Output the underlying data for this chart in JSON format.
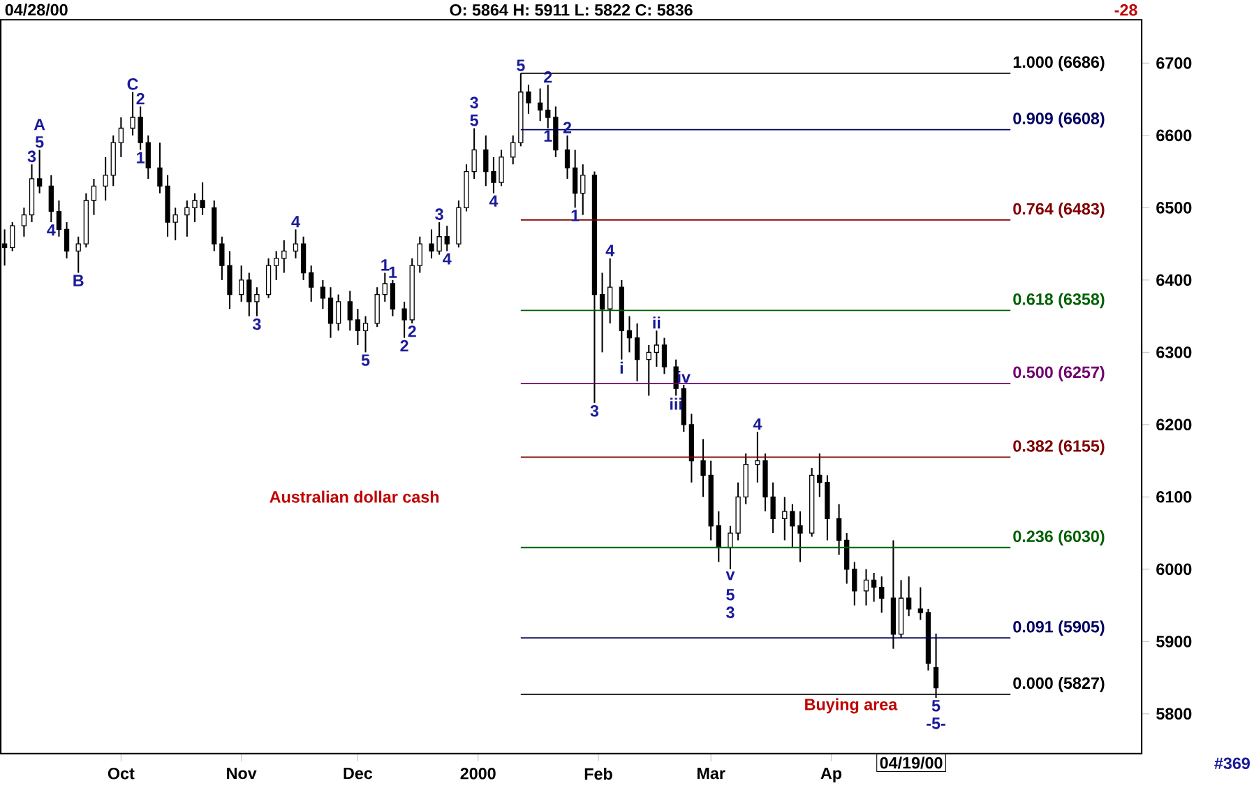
{
  "chart_data": {
    "type": "candlestick",
    "title": "04/28/00",
    "subtitle": "O: 5864   H: 5911   L: 5822   C: 5836",
    "x": [
      "1999-09-01",
      "1999-09-03",
      "1999-09-06",
      "1999-09-08",
      "1999-09-10",
      "1999-09-13",
      "1999-09-15",
      "1999-09-17",
      "1999-09-20",
      "1999-09-22",
      "1999-09-24",
      "1999-09-27",
      "1999-09-29",
      "1999-10-01",
      "1999-10-04",
      "1999-10-06",
      "1999-10-08",
      "1999-10-11",
      "1999-10-13",
      "1999-10-15",
      "1999-10-18",
      "1999-10-20",
      "1999-10-22",
      "1999-10-25",
      "1999-10-27",
      "1999-10-29",
      "1999-11-01",
      "1999-11-03",
      "1999-11-05",
      "1999-11-08",
      "1999-11-10",
      "1999-11-12",
      "1999-11-15",
      "1999-11-17",
      "1999-11-19",
      "1999-11-22",
      "1999-11-24",
      "1999-11-26",
      "1999-11-29",
      "1999-12-01",
      "1999-12-03",
      "1999-12-06",
      "1999-12-08",
      "1999-12-10",
      "1999-12-13",
      "1999-12-15",
      "1999-12-17",
      "1999-12-20",
      "1999-12-22",
      "1999-12-24",
      "1999-12-27",
      "1999-12-29",
      "1999-12-31",
      "2000-01-03",
      "2000-01-05",
      "2000-01-07",
      "2000-01-10",
      "2000-01-12",
      "2000-01-14",
      "2000-01-17",
      "2000-01-19",
      "2000-01-21",
      "2000-01-24",
      "2000-01-26",
      "2000-01-28",
      "2000-01-31",
      "2000-02-02",
      "2000-02-04",
      "2000-02-07",
      "2000-02-09",
      "2000-02-11",
      "2000-02-14",
      "2000-02-16",
      "2000-02-18",
      "2000-02-21",
      "2000-02-23",
      "2000-02-25",
      "2000-02-28",
      "2000-03-01",
      "2000-03-03",
      "2000-03-06",
      "2000-03-08",
      "2000-03-10",
      "2000-03-13",
      "2000-03-15",
      "2000-03-17",
      "2000-03-20",
      "2000-03-22",
      "2000-03-24",
      "2000-03-27",
      "2000-03-29",
      "2000-03-31",
      "2000-04-03",
      "2000-04-05",
      "2000-04-07",
      "2000-04-10",
      "2000-04-12",
      "2000-04-14",
      "2000-04-17",
      "2000-04-19",
      "2000-04-21",
      "2000-04-24",
      "2000-04-26",
      "2000-04-28"
    ],
    "ohlc": [
      [
        6450,
        6470,
        6420,
        6445
      ],
      [
        6445,
        6480,
        6440,
        6475
      ],
      [
        6475,
        6500,
        6460,
        6490
      ],
      [
        6490,
        6560,
        6480,
        6540
      ],
      [
        6540,
        6580,
        6520,
        6530
      ],
      [
        6530,
        6545,
        6480,
        6495
      ],
      [
        6495,
        6510,
        6460,
        6470
      ],
      [
        6470,
        6480,
        6430,
        6440
      ],
      [
        6440,
        6460,
        6410,
        6450
      ],
      [
        6450,
        6520,
        6445,
        6510
      ],
      [
        6510,
        6540,
        6490,
        6530
      ],
      [
        6530,
        6570,
        6510,
        6545
      ],
      [
        6545,
        6600,
        6530,
        6590
      ],
      [
        6590,
        6625,
        6570,
        6610
      ],
      [
        6610,
        6660,
        6600,
        6625
      ],
      [
        6625,
        6640,
        6580,
        6590
      ],
      [
        6590,
        6600,
        6540,
        6555
      ],
      [
        6555,
        6590,
        6520,
        6530
      ],
      [
        6530,
        6545,
        6460,
        6480
      ],
      [
        6480,
        6500,
        6455,
        6490
      ],
      [
        6490,
        6510,
        6460,
        6500
      ],
      [
        6500,
        6520,
        6480,
        6510
      ],
      [
        6510,
        6535,
        6490,
        6500
      ],
      [
        6500,
        6510,
        6440,
        6450
      ],
      [
        6450,
        6460,
        6400,
        6420
      ],
      [
        6420,
        6440,
        6360,
        6380
      ],
      [
        6380,
        6420,
        6370,
        6400
      ],
      [
        6400,
        6410,
        6350,
        6370
      ],
      [
        6370,
        6390,
        6350,
        6380
      ],
      [
        6380,
        6430,
        6375,
        6420
      ],
      [
        6420,
        6440,
        6400,
        6430
      ],
      [
        6430,
        6455,
        6410,
        6440
      ],
      [
        6440,
        6470,
        6430,
        6450
      ],
      [
        6450,
        6460,
        6400,
        6410
      ],
      [
        6410,
        6420,
        6370,
        6390
      ],
      [
        6390,
        6400,
        6360,
        6375
      ],
      [
        6375,
        6390,
        6320,
        6340
      ],
      [
        6340,
        6380,
        6330,
        6370
      ],
      [
        6370,
        6385,
        6330,
        6345
      ],
      [
        6345,
        6360,
        6310,
        6330
      ],
      [
        6330,
        6350,
        6300,
        6340
      ],
      [
        6340,
        6390,
        6335,
        6380
      ],
      [
        6380,
        6410,
        6370,
        6395
      ],
      [
        6395,
        6400,
        6350,
        6360
      ],
      [
        6360,
        6370,
        6320,
        6345
      ],
      [
        6345,
        6430,
        6340,
        6420
      ],
      [
        6420,
        6460,
        6410,
        6450
      ],
      [
        6450,
        6470,
        6430,
        6440
      ],
      [
        6440,
        6480,
        6435,
        6460
      ],
      [
        6460,
        6475,
        6440,
        6450
      ],
      [
        6450,
        6510,
        6445,
        6500
      ],
      [
        6500,
        6560,
        6495,
        6550
      ],
      [
        6550,
        6610,
        6540,
        6580
      ],
      [
        6580,
        6600,
        6530,
        6550
      ],
      [
        6550,
        6570,
        6520,
        6535
      ],
      [
        6535,
        6580,
        6530,
        6570
      ],
      [
        6570,
        6600,
        6560,
        6590
      ],
      [
        6590,
        6686,
        6585,
        6660
      ],
      [
        6660,
        6670,
        6630,
        6645
      ],
      [
        6645,
        6665,
        6620,
        6635
      ],
      [
        6635,
        6670,
        6610,
        6625
      ],
      [
        6625,
        6640,
        6570,
        6580
      ],
      [
        6580,
        6600,
        6540,
        6555
      ],
      [
        6555,
        6580,
        6500,
        6520
      ],
      [
        6520,
        6560,
        6490,
        6545
      ],
      [
        6545,
        6550,
        6230,
        6380
      ],
      [
        6380,
        6410,
        6300,
        6360
      ],
      [
        6360,
        6430,
        6340,
        6390
      ],
      [
        6390,
        6400,
        6290,
        6330
      ],
      [
        6330,
        6350,
        6300,
        6320
      ],
      [
        6320,
        6340,
        6260,
        6290
      ],
      [
        6290,
        6310,
        6240,
        6300
      ],
      [
        6300,
        6330,
        6280,
        6310
      ],
      [
        6310,
        6320,
        6270,
        6280
      ],
      [
        6280,
        6290,
        6240,
        6250
      ],
      [
        6250,
        6255,
        6190,
        6200
      ],
      [
        6200,
        6215,
        6120,
        6150
      ],
      [
        6150,
        6180,
        6100,
        6130
      ],
      [
        6130,
        6150,
        6040,
        6060
      ],
      [
        6060,
        6080,
        6010,
        6030
      ],
      [
        6030,
        6060,
        6000,
        6050
      ],
      [
        6050,
        6120,
        6040,
        6100
      ],
      [
        6100,
        6160,
        6090,
        6145
      ],
      [
        6145,
        6190,
        6120,
        6150
      ],
      [
        6150,
        6160,
        6080,
        6100
      ],
      [
        6100,
        6120,
        6050,
        6070
      ],
      [
        6070,
        6100,
        6040,
        6080
      ],
      [
        6080,
        6090,
        6030,
        6060
      ],
      [
        6060,
        6080,
        6010,
        6050
      ],
      [
        6050,
        6140,
        6045,
        6130
      ],
      [
        6130,
        6160,
        6100,
        6120
      ],
      [
        6120,
        6130,
        6040,
        6070
      ],
      [
        6070,
        6090,
        6020,
        6040
      ],
      [
        6040,
        6050,
        5980,
        6000
      ],
      [
        6000,
        6010,
        5950,
        5970
      ],
      [
        5970,
        6000,
        5950,
        5985
      ],
      [
        5985,
        5995,
        5955,
        5975
      ],
      [
        5975,
        5990,
        5940,
        5960
      ],
      [
        5960,
        6040,
        5890,
        5910
      ],
      [
        5910,
        5985,
        5905,
        5960
      ],
      [
        5960,
        5990,
        5935,
        5945
      ],
      [
        5945,
        5975,
        5930,
        5940
      ],
      [
        5940,
        5945,
        5860,
        5870
      ],
      [
        5864,
        5911,
        5822,
        5836
      ]
    ],
    "color": "#000000",
    "xlim": [
      "1999-08-31",
      "2000-06-20"
    ],
    "xticks": [
      {
        "value": "1999-10-01",
        "label": "Oct"
      },
      {
        "value": "1999-11-01",
        "label": "Nov"
      },
      {
        "value": "1999-12-01",
        "label": "Dec"
      },
      {
        "value": "2000-01-01",
        "label": "2000"
      },
      {
        "value": "2000-02-01",
        "label": "Feb"
      },
      {
        "value": "2000-03-01",
        "label": "Mar"
      },
      {
        "value": "2000-04-01",
        "label": "Ap"
      }
    ],
    "ylim": [
      5745,
      6760
    ],
    "yticks": [
      5800,
      5900,
      6000,
      6100,
      6200,
      6300,
      6400,
      6500,
      6600,
      6700
    ],
    "ref_lines": [
      {
        "axis": "y",
        "value": 6686,
        "label": "1.000 (6686)",
        "color": "#000000"
      },
      {
        "axis": "y",
        "value": 6608,
        "label": "0.909 (6608)",
        "color": "#000060"
      },
      {
        "axis": "y",
        "value": 6483,
        "label": "0.764 (6483)",
        "color": "#800000"
      },
      {
        "axis": "y",
        "value": 6358,
        "label": "0.618 (6358)",
        "color": "#006000"
      },
      {
        "axis": "y",
        "value": 6257,
        "label": "0.500 (6257)",
        "color": "#700070"
      },
      {
        "axis": "y",
        "value": 6155,
        "label": "0.382 (6155)",
        "color": "#800000"
      },
      {
        "axis": "y",
        "value": 6030,
        "label": "0.236 (6030)",
        "color": "#006000"
      },
      {
        "axis": "y",
        "value": 5905,
        "label": "0.091 (5905)",
        "color": "#000060"
      },
      {
        "axis": "y",
        "value": 5827,
        "label": "0.000 (5827)",
        "color": "#000000"
      }
    ],
    "annotations": [
      "Australian dollar cash",
      "Buying area",
      "-28",
      "#369",
      "04/19/00",
      {
        "text": "3",
        "x": "1999-09-08",
        "y": 6560
      },
      {
        "text": "5",
        "x": "1999-09-10",
        "y": 6580
      },
      {
        "text": "A",
        "x": "1999-09-10",
        "y": 6580
      },
      {
        "text": "4",
        "x": "1999-09-13",
        "y": 6480
      },
      {
        "text": "B",
        "x": "1999-09-20",
        "y": 6410
      },
      {
        "text": "C",
        "x": "1999-10-04",
        "y": 6660
      },
      {
        "text": "2",
        "x": "1999-10-06",
        "y": 6640
      },
      {
        "text": "1",
        "x": "1999-10-06",
        "y": 6580
      },
      {
        "text": "3",
        "x": "1999-11-05",
        "y": 6350
      },
      {
        "text": "4",
        "x": "1999-11-15",
        "y": 6470
      },
      {
        "text": "5",
        "x": "1999-12-03",
        "y": 6300
      },
      {
        "text": "1",
        "x": "1999-12-08",
        "y": 6410
      },
      {
        "text": "2",
        "x": "1999-12-13",
        "y": 6320
      },
      {
        "text": "1",
        "x": "1999-12-10",
        "y": 6400
      },
      {
        "text": "2",
        "x": "1999-12-15",
        "y": 6340
      },
      {
        "text": "3",
        "x": "1999-12-22",
        "y": 6480
      },
      {
        "text": "4",
        "x": "1999-12-24",
        "y": 6440
      },
      {
        "text": "5",
        "x": "1999-12-31",
        "y": 6610
      },
      {
        "text": "3",
        "x": "1999-12-31",
        "y": 6610
      },
      {
        "text": "4",
        "x": "2000-01-05",
        "y": 6520
      },
      {
        "text": "5",
        "x": "2000-01-12",
        "y": 6686
      },
      {
        "text": "2",
        "x": "2000-01-19",
        "y": 6670
      },
      {
        "text": "1",
        "x": "2000-01-19",
        "y": 6610
      },
      {
        "text": "2",
        "x": "2000-01-24",
        "y": 6600
      },
      {
        "text": "1",
        "x": "2000-01-26",
        "y": 6500
      },
      {
        "text": "3",
        "x": "2000-01-31",
        "y": 6230
      },
      {
        "text": "4",
        "x": "2000-02-04",
        "y": 6430
      },
      {
        "text": "i",
        "x": "2000-02-07",
        "y": 6290
      },
      {
        "text": "ii",
        "x": "2000-02-16",
        "y": 6330
      },
      {
        "text": "iii",
        "x": "2000-02-21",
        "y": 6240
      },
      {
        "text": "iv",
        "x": "2000-02-23",
        "y": 6255
      },
      {
        "text": "v",
        "x": "2000-03-06",
        "y": 6000
      },
      {
        "text": "5",
        "x": "2000-03-06",
        "y": 6000
      },
      {
        "text": "3",
        "x": "2000-03-06",
        "y": 6000
      },
      {
        "text": "4",
        "x": "2000-03-13",
        "y": 6190
      },
      {
        "text": "5",
        "x": "2000-04-28",
        "y": 5822
      },
      {
        "text": "-5-",
        "x": "2000-04-28",
        "y": 5822
      }
    ]
  }
}
